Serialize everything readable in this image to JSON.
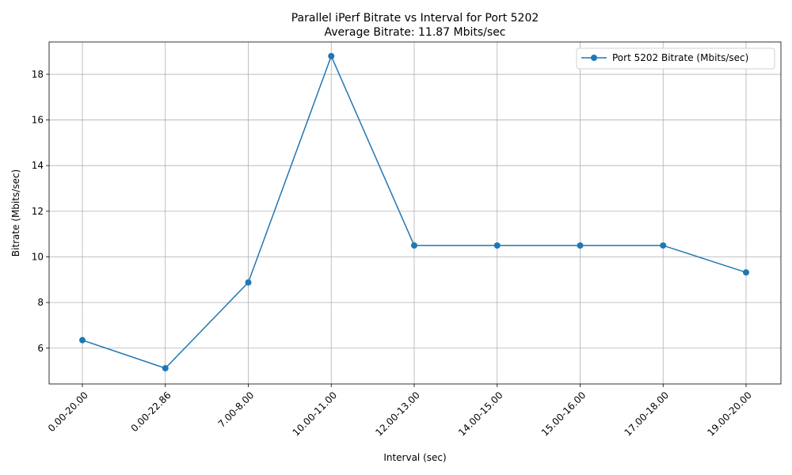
{
  "chart_data": {
    "type": "line",
    "title": "Parallel iPerf Bitrate vs Interval for Port 5202",
    "subtitle": "Average Bitrate: 11.87 Mbits/sec",
    "xlabel": "Interval (sec)",
    "ylabel": "Bitrate (Mbits/sec)",
    "categories": [
      "0.00-20.00",
      "0.00-22.86",
      "7.00-8.00",
      "10.00-11.00",
      "12.00-13.00",
      "14.00-15.00",
      "15.00-16.00",
      "17.00-18.00",
      "19.00-20.00"
    ],
    "series": [
      {
        "name": "Port 5202 Bitrate (Mbits/sec)",
        "values": [
          6.35,
          5.12,
          8.88,
          18.8,
          10.5,
          10.5,
          10.5,
          10.5,
          9.32
        ],
        "color": "#1f77b4",
        "marker": "circle"
      }
    ],
    "ylim": [
      4.43,
      19.42
    ],
    "yticks": [
      6,
      8,
      10,
      12,
      14,
      16,
      18
    ],
    "ytick_labels": [
      "6",
      "8",
      "10",
      "12",
      "14",
      "16",
      "18"
    ],
    "grid": true,
    "legend_position": "top-right",
    "xtick_rotation": 45
  }
}
